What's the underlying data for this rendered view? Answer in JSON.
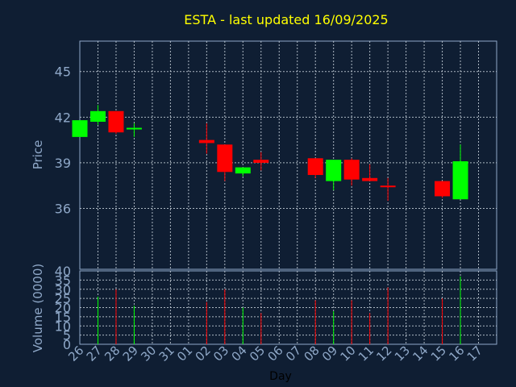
{
  "colors": {
    "background": "#0f1e33",
    "frame": "#8fa8c8",
    "grid": "#c8d2dc",
    "text": "#8fa8c8",
    "title": "#ffff00",
    "up": "#00ff00",
    "down": "#ff0000",
    "stem": "#000000"
  },
  "chart_data": [
    {
      "type": "candlestick",
      "title": "ESTA - last updated 16/09/2025",
      "ylabel": "Price",
      "xlabel": "",
      "ylim": [
        32,
        47
      ],
      "yticks": [
        36,
        39,
        42,
        45
      ],
      "grid": true,
      "x": [
        "26",
        "27",
        "28",
        "29",
        "30",
        "31",
        "01",
        "02",
        "03",
        "04",
        "05",
        "06",
        "07",
        "08",
        "09",
        "10",
        "11",
        "12",
        "13",
        "14",
        "15",
        "16",
        "17"
      ],
      "candles": [
        {
          "x": "26",
          "open": 40.7,
          "high": 41.8,
          "low": 40.7,
          "close": 41.8
        },
        {
          "x": "27",
          "open": 41.7,
          "high": 42.8,
          "low": 41.5,
          "close": 42.4
        },
        {
          "x": "28",
          "open": 42.4,
          "high": 42.4,
          "low": 40.9,
          "close": 41.0
        },
        {
          "x": "29",
          "open": 41.2,
          "high": 41.6,
          "low": 40.7,
          "close": 41.3
        },
        {
          "x": "02",
          "open": 40.5,
          "high": 41.6,
          "low": 39.6,
          "close": 40.3
        },
        {
          "x": "03",
          "open": 40.2,
          "high": 40.2,
          "low": 37.8,
          "close": 38.4
        },
        {
          "x": "04",
          "open": 38.3,
          "high": 38.7,
          "low": 38.1,
          "close": 38.7
        },
        {
          "x": "05",
          "open": 39.2,
          "high": 39.7,
          "low": 38.5,
          "close": 39.0
        },
        {
          "x": "08",
          "open": 39.3,
          "high": 39.3,
          "low": 38.0,
          "close": 38.2
        },
        {
          "x": "09",
          "open": 37.8,
          "high": 39.2,
          "low": 37.2,
          "close": 39.2
        },
        {
          "x": "10",
          "open": 39.2,
          "high": 39.3,
          "low": 37.5,
          "close": 37.9
        },
        {
          "x": "11",
          "open": 38.0,
          "high": 38.9,
          "low": 37.8,
          "close": 37.8
        },
        {
          "x": "12",
          "open": 37.5,
          "high": 38.0,
          "low": 36.5,
          "close": 37.4
        },
        {
          "x": "15",
          "open": 37.8,
          "high": 37.8,
          "low": 36.7,
          "close": 36.8
        },
        {
          "x": "16",
          "open": 36.6,
          "high": 40.2,
          "low": 36.6,
          "close": 39.1
        }
      ]
    },
    {
      "type": "bar",
      "ylabel": "Volume (0000)",
      "xlabel": "Day",
      "ylim": [
        0,
        40
      ],
      "yticks": [
        0,
        5,
        10,
        15,
        20,
        25,
        30,
        35,
        40
      ],
      "grid": true,
      "categories": [
        "26",
        "27",
        "28",
        "29",
        "30",
        "31",
        "01",
        "02",
        "03",
        "04",
        "05",
        "06",
        "07",
        "08",
        "09",
        "10",
        "11",
        "12",
        "13",
        "14",
        "15",
        "16",
        "17"
      ],
      "volumes": [
        {
          "x": "27",
          "value": 26,
          "dir": "up"
        },
        {
          "x": "28",
          "value": 30,
          "dir": "down"
        },
        {
          "x": "29",
          "value": 21,
          "dir": "up"
        },
        {
          "x": "02",
          "value": 23,
          "dir": "down"
        },
        {
          "x": "03",
          "value": 30,
          "dir": "down"
        },
        {
          "x": "04",
          "value": 20,
          "dir": "up"
        },
        {
          "x": "05",
          "value": 17,
          "dir": "down"
        },
        {
          "x": "08",
          "value": 24,
          "dir": "down"
        },
        {
          "x": "09",
          "value": 18,
          "dir": "up"
        },
        {
          "x": "10",
          "value": 24,
          "dir": "down"
        },
        {
          "x": "11",
          "value": 17,
          "dir": "down"
        },
        {
          "x": "12",
          "value": 31,
          "dir": "down"
        },
        {
          "x": "15",
          "value": 25,
          "dir": "down"
        },
        {
          "x": "16",
          "value": 37,
          "dir": "up"
        }
      ]
    }
  ]
}
